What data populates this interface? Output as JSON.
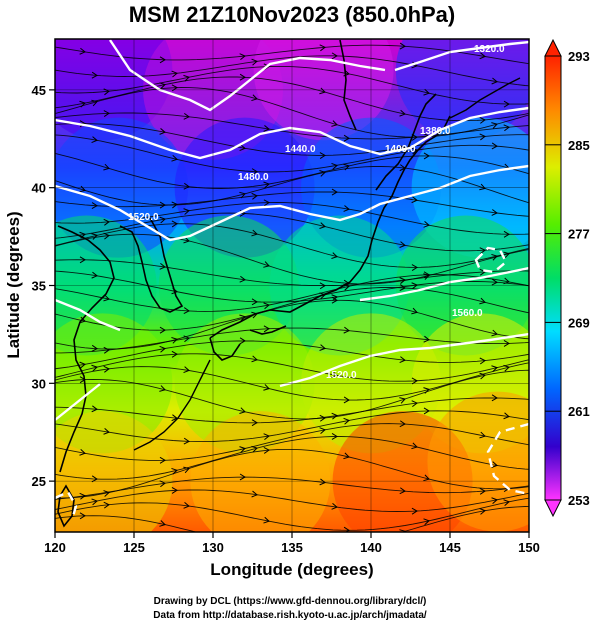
{
  "chart_data": {
    "type": "heatmap",
    "title": "MSM 21Z10Nov2023 (850.0hPa)",
    "xlabel": "Longitude (degrees)",
    "ylabel": "Latitude  (degrees)",
    "xlim": [
      120,
      150
    ],
    "ylim": [
      22.4,
      47.6
    ],
    "x_ticks": [
      120,
      125,
      130,
      135,
      140,
      145,
      150
    ],
    "y_ticks": [
      25,
      30,
      35,
      40,
      45
    ],
    "grid": true,
    "colorbar": {
      "label_values": [
        253,
        261,
        269,
        277,
        285,
        293
      ],
      "min": 253,
      "max": 293,
      "colors": [
        "#ff33ff",
        "#9900cc",
        "#3300ff",
        "#0066ff",
        "#00ddff",
        "#00dd66",
        "#55ee00",
        "#ddee00",
        "#ffaa00",
        "#ff2200"
      ]
    },
    "contours": [
      {
        "label": "1320.0"
      },
      {
        "label": "1380.0"
      },
      {
        "label": "1400.0"
      },
      {
        "label": "1440.0"
      },
      {
        "label": "1480.0"
      },
      {
        "label": "1520.0"
      },
      {
        "label": "1520.0"
      },
      {
        "label": "1560.0"
      }
    ],
    "temperature_samples": [
      {
        "lon": 123,
        "lat": 46,
        "value": 261
      },
      {
        "lon": 130,
        "lat": 45,
        "value": 256
      },
      {
        "lon": 137,
        "lat": 46,
        "value": 255
      },
      {
        "lon": 146,
        "lat": 46,
        "value": 264
      },
      {
        "lon": 124,
        "lat": 40,
        "value": 265
      },
      {
        "lon": 132,
        "lat": 40,
        "value": 263
      },
      {
        "lon": 140,
        "lat": 40,
        "value": 266
      },
      {
        "lon": 147,
        "lat": 40,
        "value": 270
      },
      {
        "lon": 122,
        "lat": 35,
        "value": 275
      },
      {
        "lon": 131,
        "lat": 35,
        "value": 276
      },
      {
        "lon": 138,
        "lat": 35,
        "value": 274
      },
      {
        "lon": 146,
        "lat": 35,
        "value": 276
      },
      {
        "lon": 123,
        "lat": 30,
        "value": 281
      },
      {
        "lon": 132,
        "lat": 30,
        "value": 282
      },
      {
        "lon": 140,
        "lat": 30,
        "value": 283
      },
      {
        "lon": 147,
        "lat": 30,
        "value": 284
      },
      {
        "lon": 123,
        "lat": 25,
        "value": 286
      },
      {
        "lon": 133,
        "lat": 25,
        "value": 288
      },
      {
        "lon": 142,
        "lat": 25,
        "value": 292
      },
      {
        "lon": 148,
        "lat": 26,
        "value": 289
      }
    ]
  },
  "credits": {
    "line1": "Drawing by DCL (https://www.gfd-dennou.org/library/dcl/)",
    "line2": "Data from http://database.rish.kyoto-u.ac.jp/arch/jmadata/"
  }
}
